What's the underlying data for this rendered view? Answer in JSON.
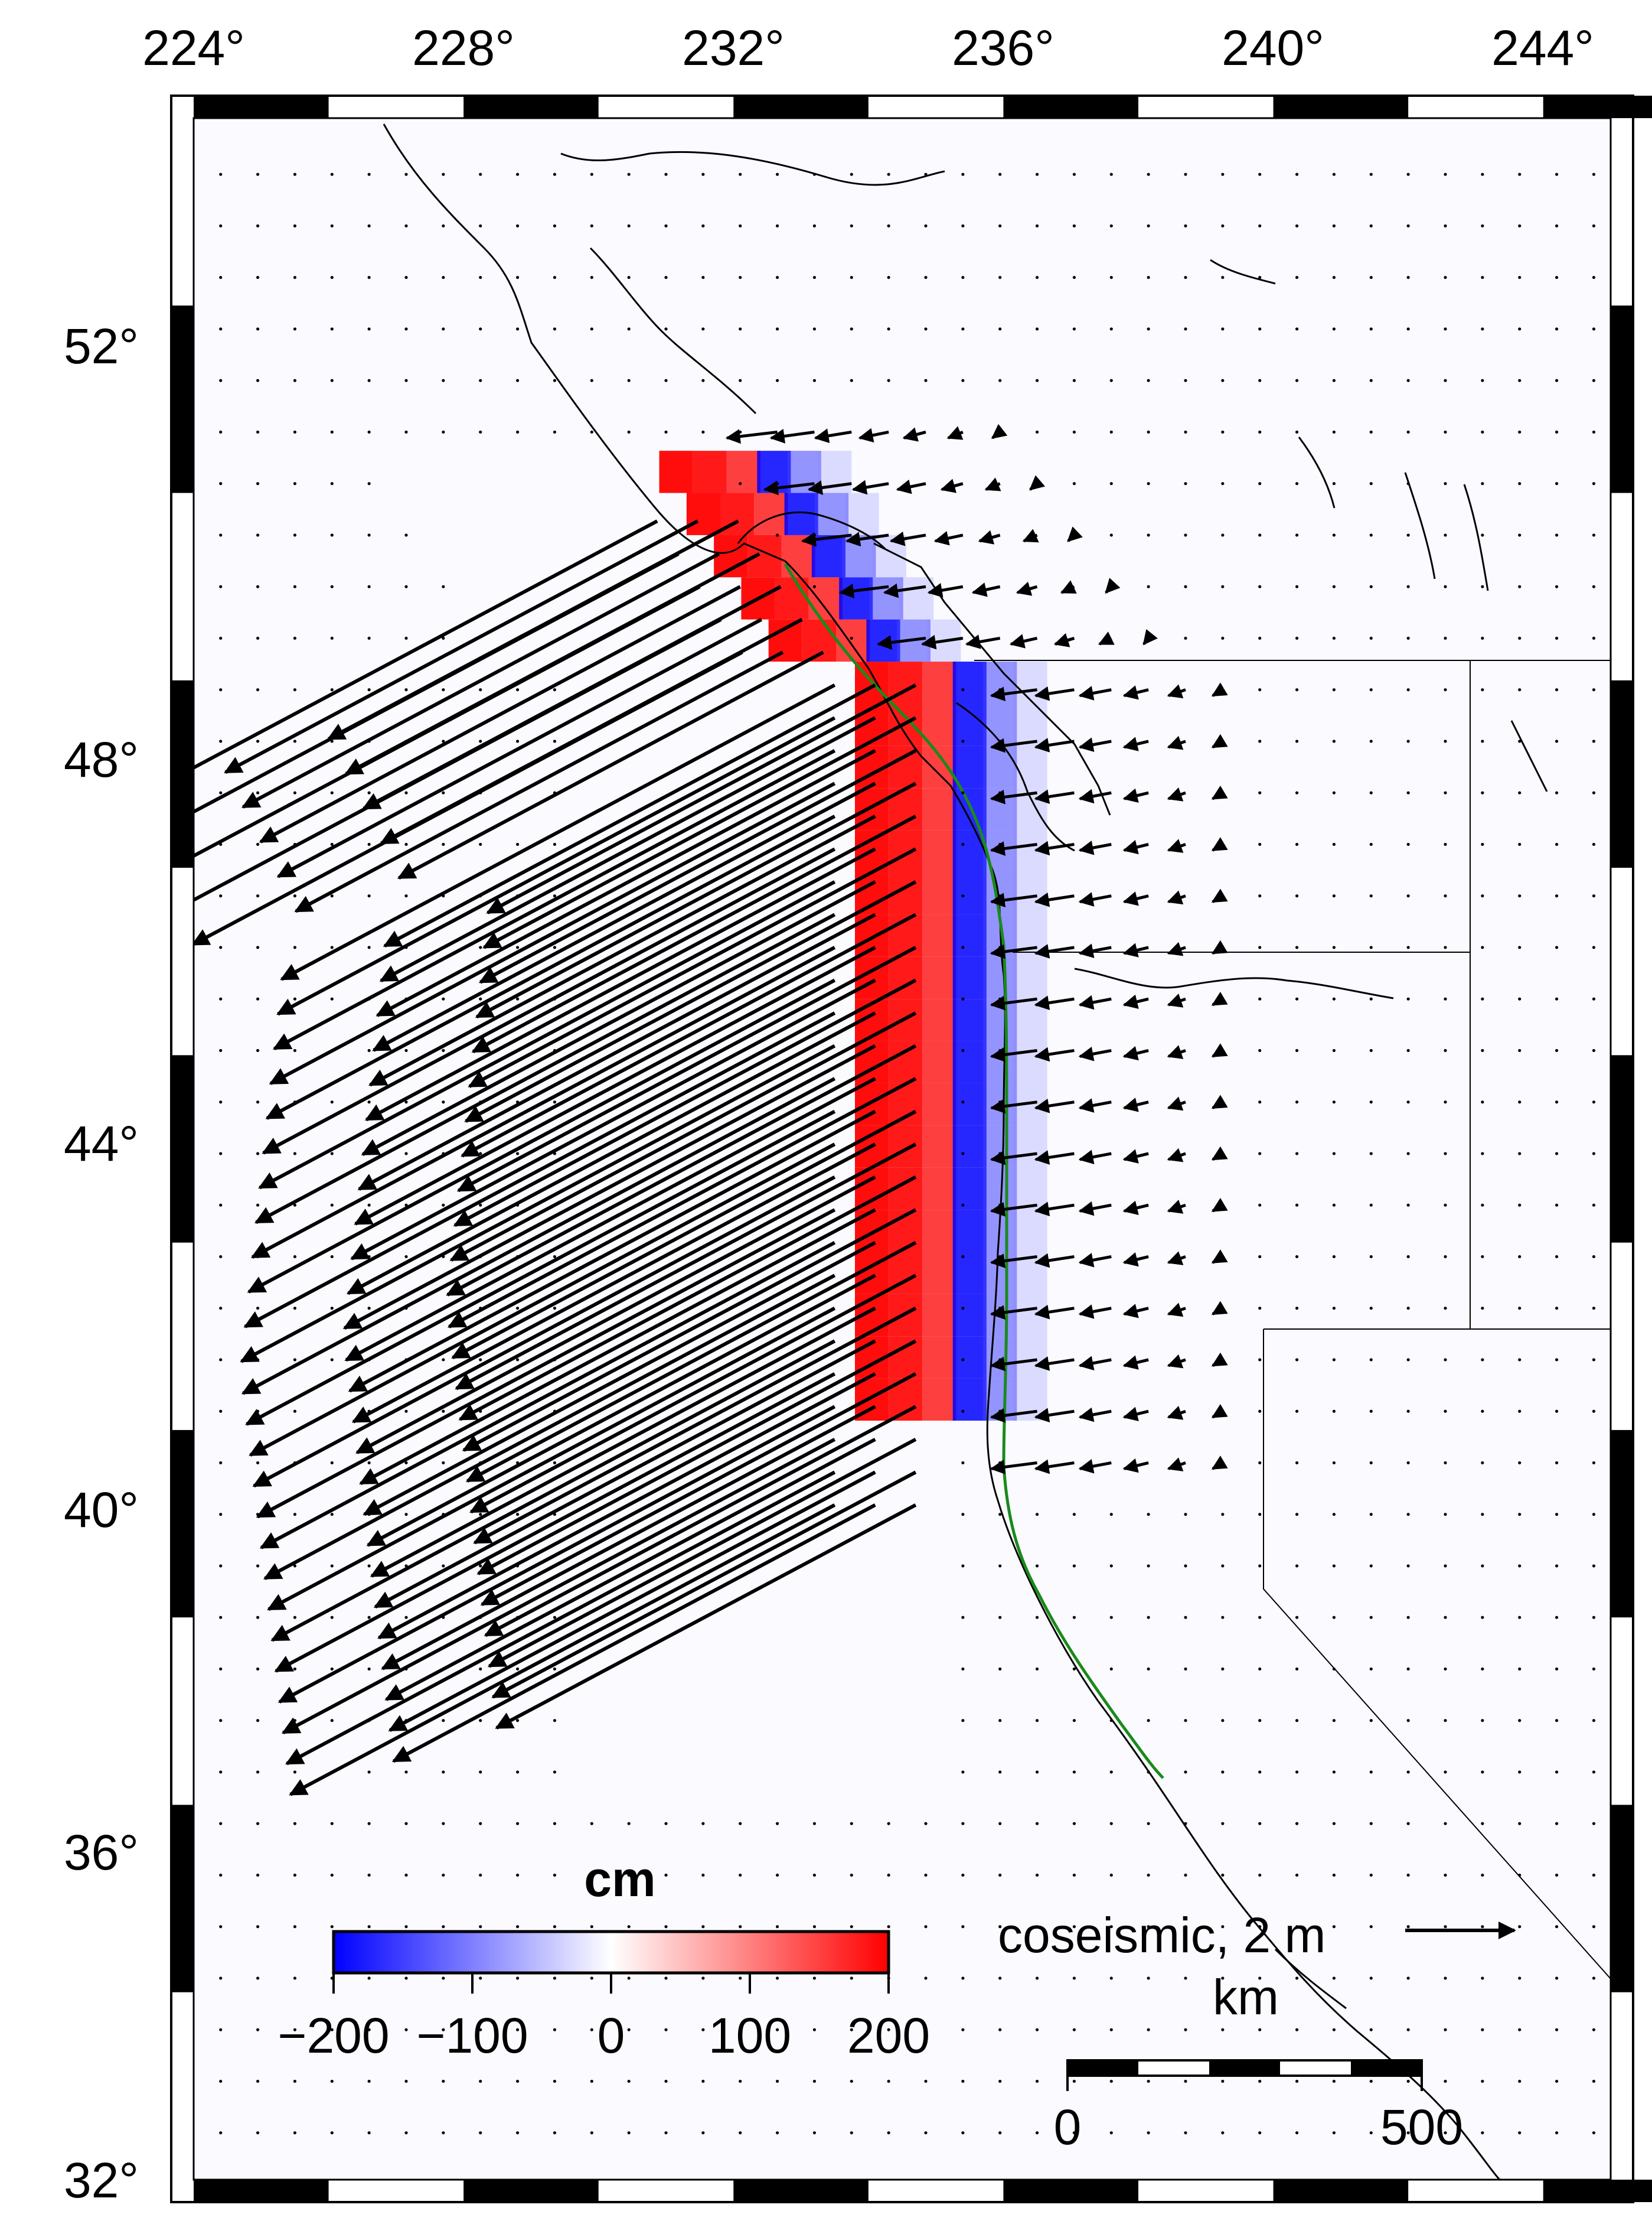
{
  "map": {
    "lon_range": [
      224,
      245
    ],
    "lat_range": [
      32,
      54
    ],
    "lon_ticks": [
      {
        "value": 224,
        "label": "224°"
      },
      {
        "value": 228,
        "label": "228°"
      },
      {
        "value": 232,
        "label": "232°"
      },
      {
        "value": 236,
        "label": "236°"
      },
      {
        "value": 240,
        "label": "240°"
      },
      {
        "value": 244,
        "label": "244°"
      }
    ],
    "lat_ticks": [
      {
        "value": 52,
        "label": "52°"
      },
      {
        "value": 48,
        "label": "48°"
      },
      {
        "value": 44,
        "label": "44°"
      },
      {
        "value": 40,
        "label": "40°"
      },
      {
        "value": 36,
        "label": "36°"
      },
      {
        "value": 32,
        "label": "32°"
      }
    ],
    "land_color": "#fafaff",
    "coast_color": "#000000",
    "trench_color": "#1a8a1a",
    "arrow_color": "#000000",
    "vector_field_name": "coseismic horizontal displacement",
    "slip_patches_direction": "uplift (red) west of coast, subsidence (blue) along coast"
  },
  "colorbar": {
    "title": "cm",
    "min": -200,
    "max": 200,
    "ticks": [
      {
        "value": -200,
        "label": "−200"
      },
      {
        "value": -100,
        "label": "−100"
      },
      {
        "value": 0,
        "label": "0"
      },
      {
        "value": 100,
        "label": "100"
      },
      {
        "value": 200,
        "label": "200"
      }
    ],
    "low_color": "#0000ff",
    "mid_color": "#ffffff",
    "high_color": "#ff0000"
  },
  "vector_legend": {
    "label": "coseismic, 2 m"
  },
  "scale_bar": {
    "title": "km",
    "labels": [
      "0",
      "500"
    ]
  }
}
